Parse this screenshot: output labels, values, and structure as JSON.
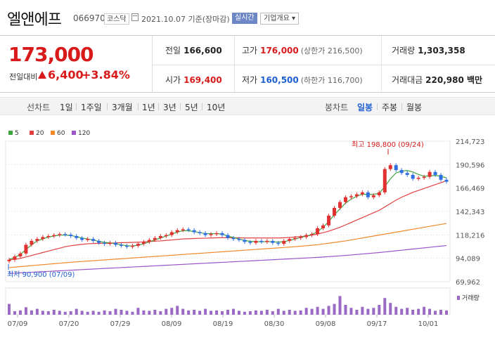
{
  "header": {
    "name": "엘앤에프",
    "code": "066970",
    "market": "코스닥",
    "date": "2021.10.07 기준(장마감)",
    "live_label": "실시간",
    "info_label": "기업개요 ▾"
  },
  "price": {
    "current": "173,000",
    "prev_label": "전일대비",
    "change": "6,400",
    "percent": "+3.84%"
  },
  "stats": {
    "prev_close_label": "전일",
    "prev_close": "166,600",
    "high_label": "고가",
    "high": "176,000",
    "upper_limit": "(상한가 216,500)",
    "volume_label": "거래량",
    "volume": "1,303,358",
    "open_label": "시가",
    "open": "169,400",
    "low_label": "저가",
    "low": "160,500",
    "lower_limit": "(하한가 116,700)",
    "amount_label": "거래대금",
    "amount": "220,980 백만"
  },
  "tabs": {
    "line_chart": "선차트",
    "periods": [
      "1일",
      "1주일",
      "3개월",
      "1년",
      "3년",
      "5년",
      "10년"
    ],
    "candle_chart": "봉차트",
    "candle_periods": [
      "일봉",
      "주봉",
      "월봉"
    ],
    "active_candle": "일봉"
  },
  "chart_data": {
    "type": "candlestick",
    "legend": [
      {
        "name": "5",
        "color": "#3fa33f"
      },
      {
        "name": "20",
        "color": "#e04040"
      },
      {
        "name": "60",
        "color": "#f0892a"
      },
      {
        "name": "120",
        "color": "#9a55c8"
      }
    ],
    "y_ticks": [
      "214,723",
      "190,596",
      "166,469",
      "142,343",
      "118,216",
      "94,089",
      "69,962"
    ],
    "ylim": [
      69962,
      214723
    ],
    "x_ticks": [
      "07/09",
      "07/20",
      "07/29",
      "08/09",
      "08/19",
      "08/30",
      "09/08",
      "09/17",
      "10/01"
    ],
    "high_annotation": "최고 198,800 (09/24)",
    "low_annotation": "최저 90,900 (07/09)",
    "volume_label": "거래량",
    "closes": [
      92500,
      96000,
      99000,
      108000,
      112000,
      114000,
      116000,
      117000,
      118000,
      119000,
      118500,
      117000,
      115000,
      113000,
      114000,
      112000,
      110000,
      109000,
      110000,
      108000,
      107000,
      106000,
      107000,
      109000,
      111000,
      113000,
      115000,
      117000,
      118000,
      121000,
      123000,
      124000,
      123000,
      121000,
      120000,
      118000,
      119000,
      120000,
      118000,
      115000,
      114000,
      113000,
      111000,
      110000,
      112000,
      111000,
      112000,
      110000,
      109000,
      112000,
      114000,
      115000,
      116000,
      118000,
      119000,
      125000,
      128000,
      138000,
      146000,
      152000,
      157000,
      158000,
      160000,
      162000,
      157000,
      159000,
      162000,
      186000,
      190000,
      185000,
      182000,
      180000,
      176000,
      177000,
      178000,
      183000,
      180000,
      175000,
      173000
    ],
    "ma5": [
      93000,
      95000,
      98000,
      103000,
      108000,
      112000,
      114000,
      116000,
      117000,
      118000,
      118000,
      117500,
      116500,
      115000,
      114000,
      113000,
      111500,
      110500,
      110000,
      109000,
      108000,
      107000,
      106800,
      107500,
      109000,
      111000,
      113000,
      115000,
      117000,
      119000,
      121000,
      122500,
      122500,
      121500,
      120500,
      119500,
      119500,
      119500,
      119000,
      117000,
      115500,
      114000,
      112500,
      111500,
      111500,
      111000,
      111300,
      111000,
      110800,
      111200,
      112500,
      114000,
      115500,
      117000,
      118500,
      121500,
      126000,
      132000,
      139000,
      145000,
      151000,
      155000,
      158000,
      160000,
      160000,
      160000,
      161000,
      168000,
      176000,
      182000,
      184000,
      184500,
      183000,
      180500,
      178500,
      179000,
      179500,
      178500,
      177000
    ],
    "ma20": [
      92500,
      93000,
      94000,
      95500,
      97000,
      98500,
      100000,
      101500,
      103000,
      104500,
      106000,
      107000,
      107800,
      108500,
      109000,
      109300,
      109500,
      109500,
      109700,
      110000,
      110200,
      110300,
      110500,
      110700,
      111000,
      111300,
      111700,
      112000,
      112500,
      113000,
      113500,
      114000,
      114200,
      114500,
      114700,
      114800,
      115000,
      115200,
      115300,
      115300,
      115200,
      115200,
      115000,
      115000,
      115000,
      115000,
      115000,
      115000,
      115000,
      115200,
      115500,
      116000,
      116500,
      117000,
      118000,
      119000,
      120500,
      122000,
      124000,
      126000,
      128500,
      131000,
      133500,
      136000,
      138500,
      141000,
      143500,
      147000,
      150500,
      154000,
      157000,
      159500,
      162000,
      164000,
      166000,
      168000,
      170000,
      172000,
      174000
    ],
    "ma60": [
      84500,
      85000,
      85500,
      86000,
      86500,
      87000,
      87500,
      88000,
      88500,
      89000,
      89500,
      90000,
      90400,
      90800,
      91200,
      91600,
      92000,
      92400,
      92800,
      93200,
      93600,
      94000,
      94400,
      94800,
      95200,
      95600,
      96000,
      96400,
      96800,
      97200,
      97600,
      98000,
      98400,
      98800,
      99200,
      99600,
      100000,
      100400,
      100800,
      101200,
      101600,
      102000,
      102400,
      102800,
      103200,
      103600,
      104000,
      104400,
      104800,
      105200,
      105600,
      106000,
      106500,
      107000,
      107500,
      108000,
      108800,
      109600,
      110400,
      111200,
      112000,
      113000,
      114000,
      115000,
      116000,
      117000,
      118000,
      119000,
      120000,
      121000,
      122000,
      123000,
      124000,
      125000,
      126000,
      127000,
      128000,
      129000,
      130000
    ],
    "ma120": [
      78500,
      78800,
      79100,
      79400,
      79700,
      80000,
      80300,
      80600,
      80900,
      81200,
      81500,
      81800,
      82100,
      82400,
      82700,
      83000,
      83300,
      83600,
      83900,
      84200,
      84500,
      84800,
      85100,
      85400,
      85700,
      86000,
      86300,
      86600,
      86900,
      87200,
      87500,
      87800,
      88100,
      88400,
      88700,
      89000,
      89300,
      89600,
      89900,
      90200,
      90500,
      90800,
      91100,
      91400,
      91700,
      92000,
      92300,
      92600,
      92900,
      93200,
      93500,
      93800,
      94100,
      94400,
      94700,
      95000,
      95400,
      95800,
      96200,
      96600,
      97000,
      97500,
      98000,
      98500,
      99000,
      99500,
      100000,
      100600,
      101200,
      101800,
      102400,
      103000,
      103600,
      104200,
      104800,
      105400,
      106000,
      106600,
      107200
    ],
    "volumes": [
      0.55,
      0.18,
      0.22,
      0.38,
      0.22,
      0.3,
      0.2,
      0.18,
      0.25,
      0.2,
      0.15,
      0.18,
      0.3,
      0.2,
      0.15,
      0.2,
      0.15,
      0.22,
      0.18,
      0.3,
      0.25,
      0.2,
      0.15,
      0.35,
      0.22,
      0.2,
      0.25,
      0.18,
      0.3,
      0.35,
      0.45,
      0.3,
      0.22,
      0.25,
      0.2,
      0.3,
      0.2,
      0.22,
      0.18,
      0.25,
      0.3,
      0.2,
      0.15,
      0.18,
      0.22,
      0.2,
      0.25,
      0.18,
      0.3,
      0.2,
      0.25,
      0.2,
      0.22,
      0.35,
      0.3,
      0.4,
      0.3,
      0.45,
      0.55,
      0.95,
      0.5,
      0.35,
      0.25,
      0.4,
      0.3,
      0.35,
      0.5,
      0.85,
      0.6,
      0.4,
      0.3,
      0.35,
      0.25,
      0.3,
      0.4,
      0.3,
      0.2,
      0.25,
      0.22
    ]
  }
}
